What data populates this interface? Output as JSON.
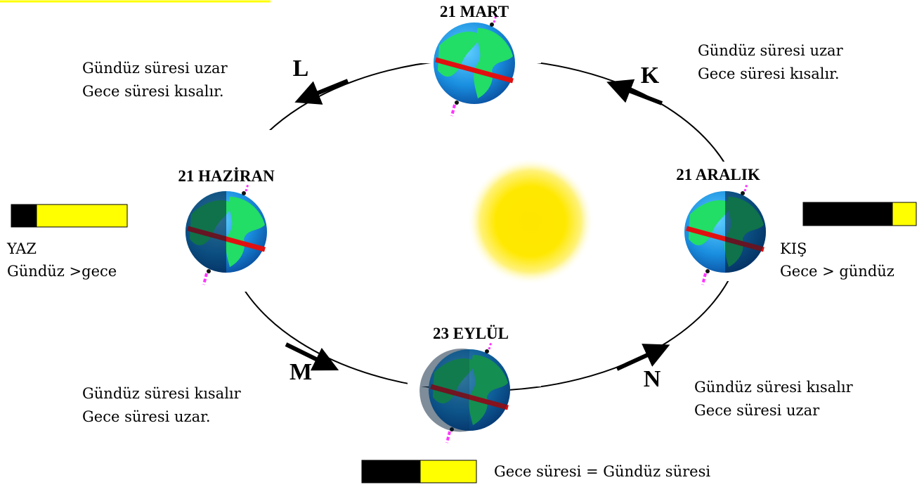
{
  "seasons": [
    {
      "label": "21 MART"
    },
    {
      "label": "21 HAZİRAN"
    },
    {
      "label": "21 ARALIK"
    },
    {
      "label": "23 EYLÜL"
    }
  ],
  "arrows": [
    "L",
    "K",
    "M",
    "N"
  ],
  "notes": {
    "top_left": [
      "Gündüz süresi uzar",
      "Gece süresi kısalır."
    ],
    "top_right": [
      "Gündüz süresi uzar",
      "Gece süresi kısalır."
    ],
    "bottom_left": [
      "Gündüz süresi kısalır",
      "Gece süresi uzar."
    ],
    "bottom_right": [
      "Gündüz süresi kısalır",
      "Gece süresi uzar"
    ]
  },
  "summer": {
    "title": "YAZ",
    "text": "Gündüz >gece"
  },
  "winter": {
    "title": "KIŞ",
    "text": "Gece > gündüz"
  },
  "equinox": "Gece süresi = Gündüz süresi"
}
